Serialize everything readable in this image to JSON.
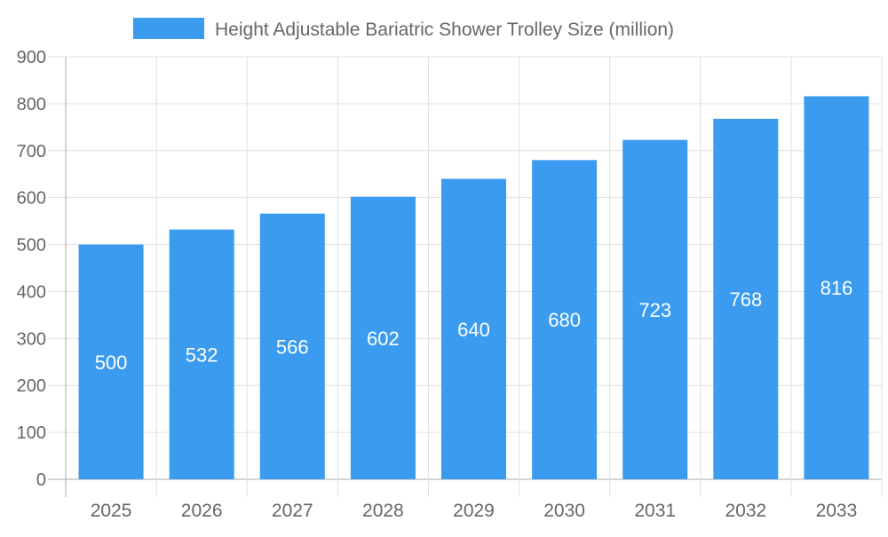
{
  "chart_data": {
    "type": "bar",
    "title": "",
    "legend": {
      "position": "top",
      "entries": [
        "Height Adjustable Bariatric Shower Trolley Size (million)"
      ]
    },
    "series": [
      {
        "name": "Height Adjustable Bariatric Shower Trolley Size (million)",
        "values": [
          500,
          532,
          566,
          602,
          640,
          680,
          723,
          768,
          816
        ]
      }
    ],
    "categories": [
      "2025",
      "2026",
      "2027",
      "2028",
      "2029",
      "2030",
      "2031",
      "2032",
      "2033"
    ],
    "yticks": [
      "0",
      "100",
      "200",
      "300",
      "400",
      "500",
      "600",
      "700",
      "800",
      "900"
    ],
    "ylim": [
      0,
      900
    ],
    "grid": true,
    "data_labels": true,
    "colors": {
      "bar": "#3a9bef",
      "grid": "#e0e0e0",
      "axis": "#aaaaaa",
      "text": "#666666",
      "label": "#ffffff"
    }
  }
}
